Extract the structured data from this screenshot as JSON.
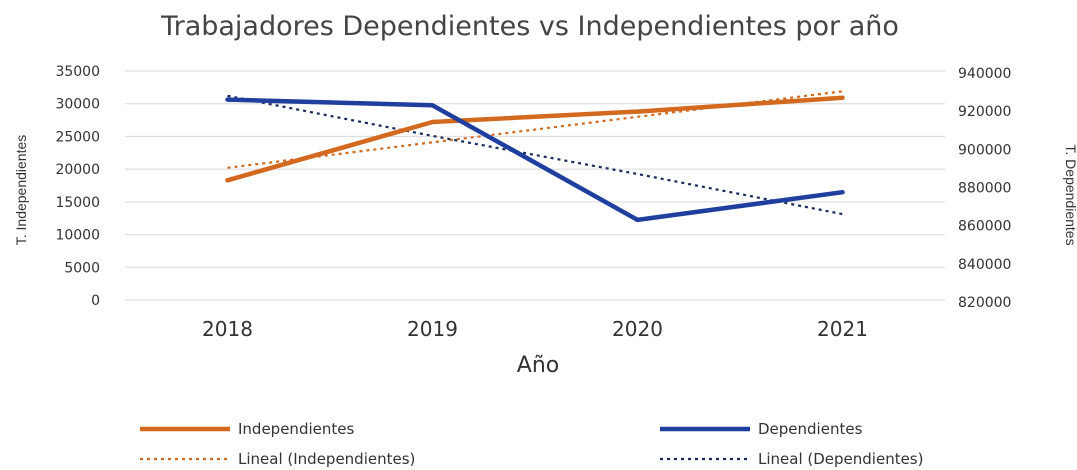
{
  "chart_data": {
    "type": "line",
    "title": "Trabajadores Dependientes vs Independientes por año",
    "xlabel": "Año",
    "ylabel_left": "T. Independientes",
    "ylabel_right": "T. Dependientes",
    "categories": [
      "2018",
      "2019",
      "2020",
      "2021"
    ],
    "y_left": {
      "min": 0,
      "max": 35000,
      "ticks": [
        "0",
        "5000",
        "10000",
        "15000",
        "20000",
        "25000",
        "30000",
        "35000"
      ]
    },
    "y_right": {
      "min": 820000,
      "max": 940000,
      "ticks": [
        "820000",
        "840000",
        "860000",
        "880000",
        "900000",
        "920000",
        "940000"
      ]
    },
    "grid": true,
    "legend_position": "bottom",
    "series": [
      {
        "name": "Independientes",
        "axis": "left",
        "color": "#D2691E",
        "style": "solid",
        "values": [
          18300,
          27200,
          28800,
          30900
        ]
      },
      {
        "name": "Dependientes",
        "axis": "right",
        "color": "#1F3F9F",
        "style": "solid",
        "values": [
          925000,
          922000,
          862000,
          876500
        ]
      },
      {
        "name": "Lineal (Independientes)",
        "axis": "left",
        "color": "#D2691E",
        "style": "dotted",
        "values": [
          20200,
          24100,
          28000,
          31900
        ]
      },
      {
        "name": "Lineal (Dependientes)",
        "axis": "right",
        "color": "#1a2a5a",
        "style": "dotted",
        "values": [
          927000,
          906000,
          886000,
          865000
        ]
      }
    ]
  }
}
